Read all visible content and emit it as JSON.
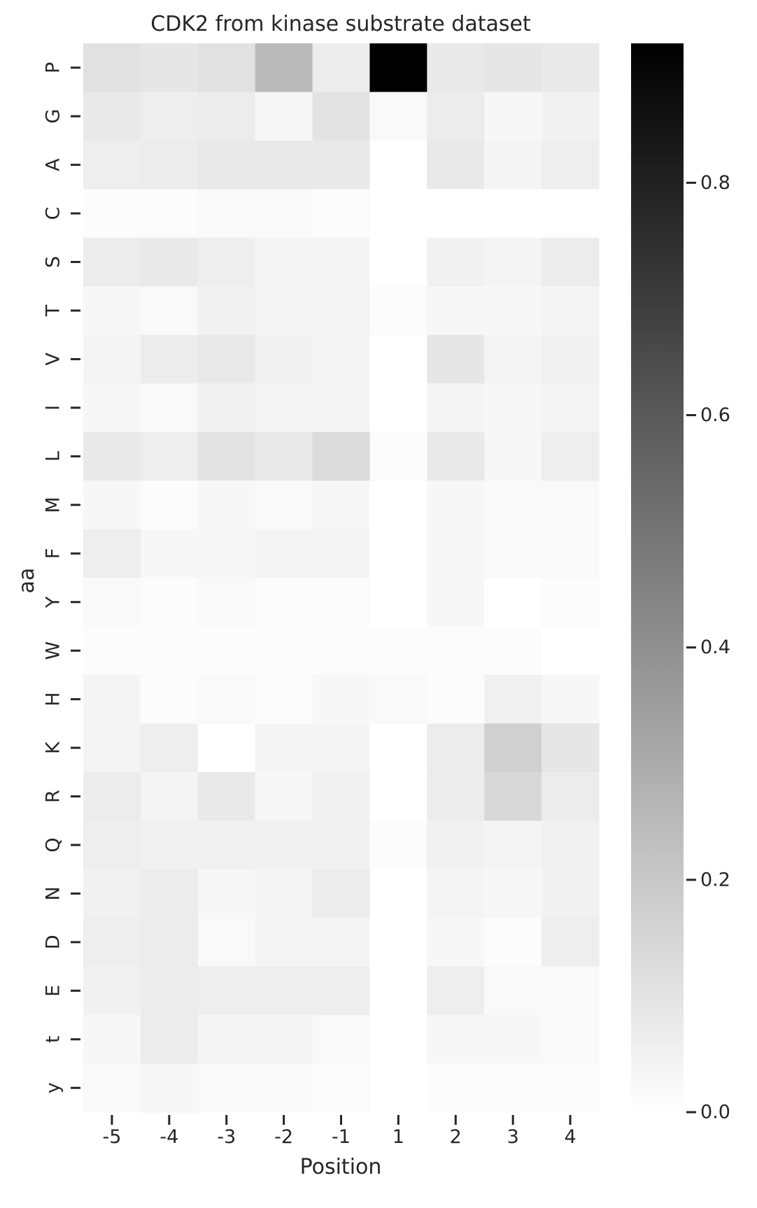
{
  "chart_data": {
    "type": "heatmap",
    "title": "CDK2 from kinase substrate dataset",
    "xlabel": "Position",
    "ylabel": "aa",
    "x_categories": [
      "-5",
      "-4",
      "-3",
      "-2",
      "-1",
      "1",
      "2",
      "3",
      "4"
    ],
    "y_categories": [
      "P",
      "G",
      "A",
      "C",
      "S",
      "T",
      "V",
      "I",
      "L",
      "M",
      "F",
      "Y",
      "W",
      "H",
      "K",
      "R",
      "Q",
      "N",
      "D",
      "E",
      "t",
      "y"
    ],
    "values": [
      [
        0.11,
        0.09,
        0.11,
        0.25,
        0.07,
        0.92,
        0.08,
        0.09,
        0.08
      ],
      [
        0.08,
        0.06,
        0.07,
        0.03,
        0.1,
        0.02,
        0.07,
        0.03,
        0.05
      ],
      [
        0.06,
        0.07,
        0.08,
        0.08,
        0.08,
        0.0,
        0.08,
        0.04,
        0.06
      ],
      [
        0.01,
        0.01,
        0.02,
        0.02,
        0.01,
        0.0,
        0.0,
        0.0,
        0.0
      ],
      [
        0.07,
        0.08,
        0.06,
        0.04,
        0.04,
        0.0,
        0.05,
        0.04,
        0.07
      ],
      [
        0.03,
        0.02,
        0.05,
        0.04,
        0.04,
        0.01,
        0.03,
        0.03,
        0.04
      ],
      [
        0.04,
        0.07,
        0.08,
        0.05,
        0.04,
        0.0,
        0.09,
        0.04,
        0.05
      ],
      [
        0.03,
        0.02,
        0.05,
        0.04,
        0.04,
        0.0,
        0.04,
        0.03,
        0.04
      ],
      [
        0.08,
        0.06,
        0.1,
        0.08,
        0.13,
        0.01,
        0.08,
        0.03,
        0.06
      ],
      [
        0.03,
        0.01,
        0.03,
        0.02,
        0.03,
        0.0,
        0.03,
        0.02,
        0.02
      ],
      [
        0.06,
        0.03,
        0.03,
        0.04,
        0.04,
        0.0,
        0.03,
        0.02,
        0.02
      ],
      [
        0.02,
        0.01,
        0.02,
        0.01,
        0.01,
        0.0,
        0.03,
        0.0,
        0.01
      ],
      [
        0.01,
        0.01,
        0.01,
        0.01,
        0.01,
        0.01,
        0.01,
        0.01,
        0.0
      ],
      [
        0.04,
        0.01,
        0.02,
        0.01,
        0.03,
        0.02,
        0.01,
        0.05,
        0.03
      ],
      [
        0.04,
        0.06,
        0.0,
        0.04,
        0.04,
        0.0,
        0.07,
        0.17,
        0.09
      ],
      [
        0.07,
        0.04,
        0.08,
        0.03,
        0.05,
        0.0,
        0.07,
        0.14,
        0.07
      ],
      [
        0.06,
        0.05,
        0.05,
        0.05,
        0.05,
        0.01,
        0.05,
        0.04,
        0.05
      ],
      [
        0.05,
        0.07,
        0.03,
        0.04,
        0.07,
        0.0,
        0.04,
        0.03,
        0.05
      ],
      [
        0.06,
        0.07,
        0.02,
        0.04,
        0.04,
        0.0,
        0.03,
        0.01,
        0.06
      ],
      [
        0.05,
        0.07,
        0.06,
        0.06,
        0.06,
        0.0,
        0.06,
        0.02,
        0.02
      ],
      [
        0.03,
        0.07,
        0.04,
        0.04,
        0.02,
        0.0,
        0.03,
        0.03,
        0.02
      ],
      [
        0.02,
        0.03,
        0.02,
        0.02,
        0.01,
        0.0,
        0.01,
        0.01,
        0.01
      ]
    ],
    "colorbar": {
      "range": [
        0.0,
        0.92
      ],
      "ticks": [
        "0.0",
        "0.2",
        "0.4",
        "0.6",
        "0.8"
      ],
      "tick_values": [
        0.0,
        0.2,
        0.4,
        0.6,
        0.8
      ]
    },
    "colormap": "white-to-black",
    "colors": {
      "low": "#ffffff",
      "high": "#000000",
      "text": "#262626"
    }
  }
}
